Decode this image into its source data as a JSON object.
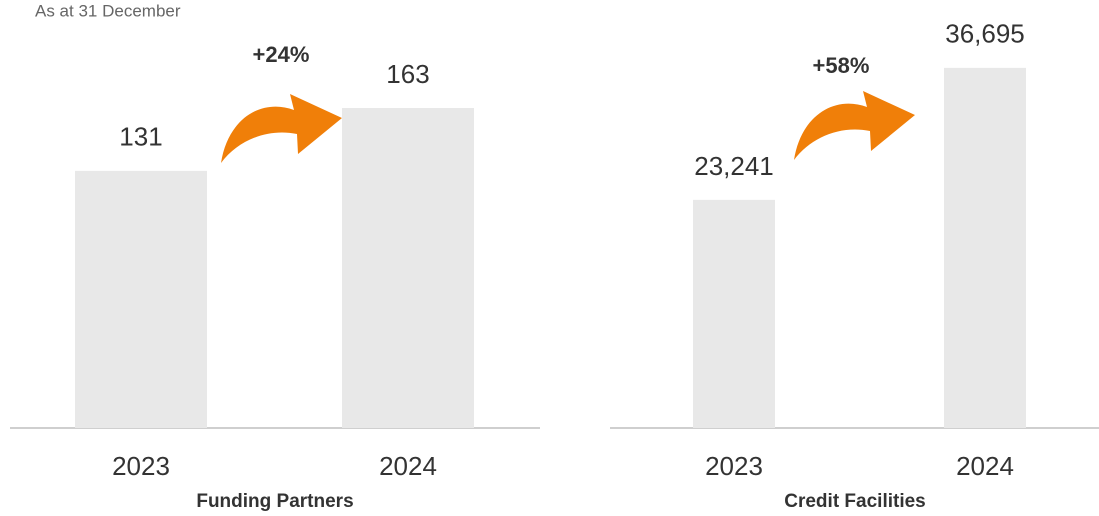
{
  "chart_data": [
    {
      "type": "bar",
      "title": "Funding Partners",
      "subtitle": "As at 31 December",
      "annotation": "+24%",
      "categories": [
        "2023",
        "2024"
      ],
      "values": [
        131,
        163
      ],
      "color": "#e8e8e8",
      "ylim": [
        0,
        200
      ]
    },
    {
      "type": "bar",
      "title": "Credit Facilities",
      "annotation": "+58%",
      "categories": [
        "2023",
        "2024"
      ],
      "values": [
        23241,
        36695
      ],
      "value_labels": [
        "23,241",
        "36,695"
      ],
      "color": "#e8e8e8",
      "ylim": [
        0,
        40000
      ]
    }
  ]
}
